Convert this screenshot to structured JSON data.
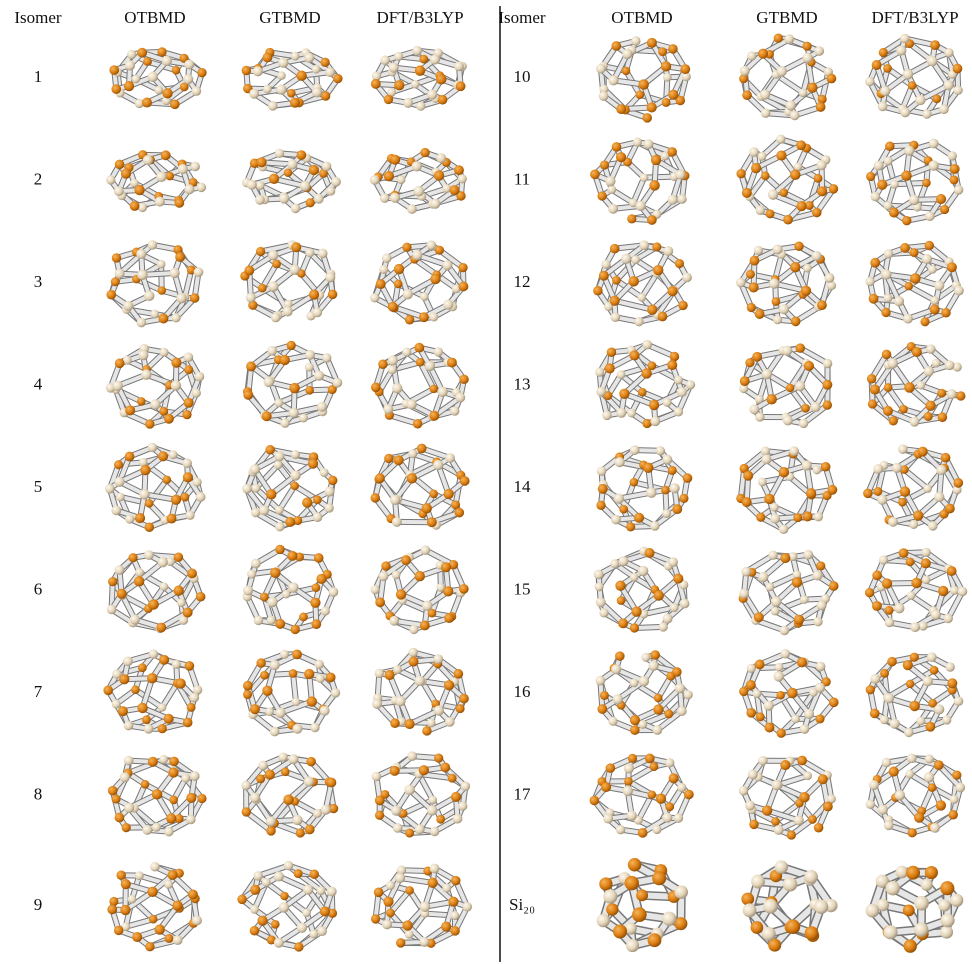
{
  "header": {
    "left": [
      "Isomer",
      "OTBMD",
      "GTBMD",
      "DFT/B3LYP"
    ],
    "right": [
      "Isomer",
      "OTBMD",
      "GTBMD",
      "DFT/B3LYP"
    ]
  },
  "rows": {
    "left": [
      "1",
      "2",
      "3",
      "4",
      "5",
      "6",
      "7",
      "8",
      "9"
    ],
    "right": [
      "10",
      "11",
      "12",
      "13",
      "14",
      "15",
      "16",
      "17",
      "Si₂₀"
    ]
  }
}
